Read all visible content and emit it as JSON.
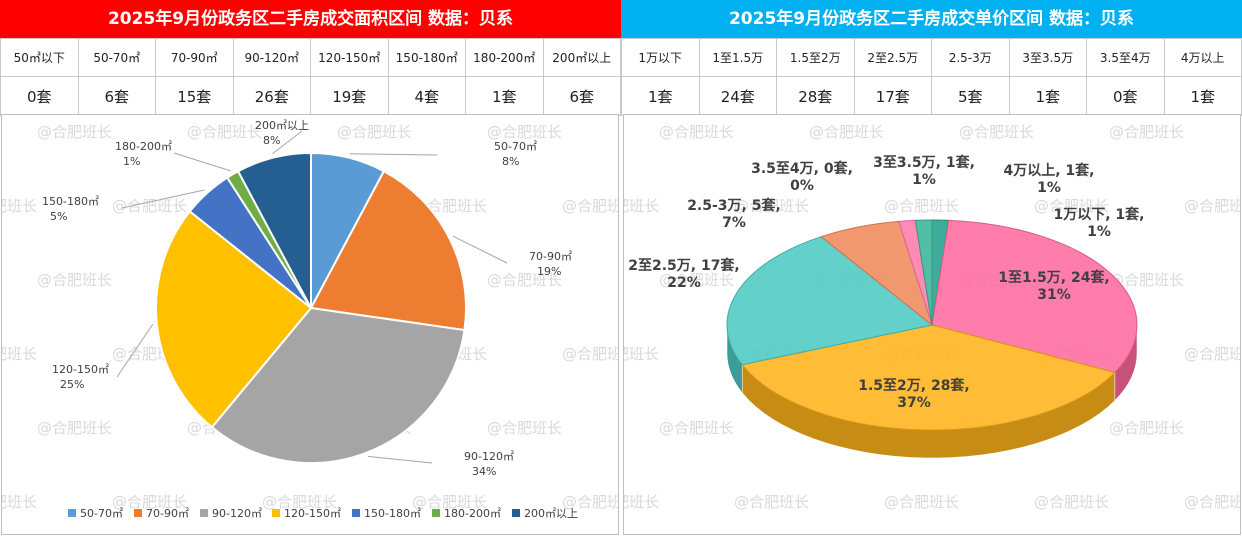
{
  "left": {
    "title": "2025年9月份政务区二手房成交面积区间 数据：贝系",
    "headers": [
      "50㎡以下",
      "50-70㎡",
      "70-90㎡",
      "90-120㎡",
      "120-150㎡",
      "150-180㎡",
      "180-200㎡",
      "200㎡以上"
    ],
    "values": [
      "0套",
      "6套",
      "15套",
      "26套",
      "19套",
      "4套",
      "1套",
      "6套"
    ]
  },
  "right": {
    "title": "2025年9月份政务区二手房成交单价区间 数据：贝系",
    "headers": [
      "1万以下",
      "1至1.5万",
      "1.5至2万",
      "2至2.5万",
      "2.5-3万",
      "3至3.5万",
      "3.5至4万",
      "4万以上"
    ],
    "values": [
      "1套",
      "24套",
      "28套",
      "17套",
      "5套",
      "1套",
      "0套",
      "1套"
    ]
  },
  "watermark": "@合肥班长",
  "chart_data": [
    {
      "type": "pie",
      "title": "",
      "slices": [
        {
          "label": "50-70㎡",
          "value": 6,
          "pct": "8%",
          "color": "#5b9bd5"
        },
        {
          "label": "70-90㎡",
          "value": 15,
          "pct": "19%",
          "color": "#ed7d31"
        },
        {
          "label": "90-120㎡",
          "value": 26,
          "pct": "34%",
          "color": "#a5a5a5"
        },
        {
          "label": "120-150㎡",
          "value": 19,
          "pct": "25%",
          "color": "#ffc000"
        },
        {
          "label": "150-180㎡",
          "value": 4,
          "pct": "5%",
          "color": "#4472c4"
        },
        {
          "label": "180-200㎡",
          "value": 1,
          "pct": "1%",
          "color": "#70ad47"
        },
        {
          "label": "200㎡以上",
          "value": 6,
          "pct": "8%",
          "color": "#255e91"
        }
      ],
      "legend": "bottom"
    },
    {
      "type": "pie",
      "title": "",
      "style": "3d",
      "slices": [
        {
          "label": "1万以下",
          "value": 1,
          "pct": "1%",
          "text": "1万以下, 1套,",
          "color": "#23a08c"
        },
        {
          "label": "1至1.5万",
          "value": 24,
          "pct": "31%",
          "text": "1至1.5万, 24套,",
          "color": "#ff6b9e"
        },
        {
          "label": "1.5至2万",
          "value": 28,
          "pct": "37%",
          "text": "1.5至2万, 28套,",
          "color": "#ffb31a"
        },
        {
          "label": "2至2.5万",
          "value": 17,
          "pct": "22%",
          "text": "2至2.5万, 17套,",
          "color": "#4dc9c3"
        },
        {
          "label": "2.5-3万",
          "value": 5,
          "pct": "7%",
          "text": "2.5-3万, 5套,",
          "color": "#f08a5d"
        },
        {
          "label": "3至3.5万",
          "value": 1,
          "pct": "1%",
          "text": "3至3.5万, 1套,",
          "color": "#ff7aa8"
        },
        {
          "label": "3.5至4万",
          "value": 0,
          "pct": "0%",
          "text": "3.5至4万, 0套,",
          "color": "#9c6ade"
        },
        {
          "label": "4万以上",
          "value": 1,
          "pct": "1%",
          "text": "4万以上, 1套,",
          "color": "#3ab59a"
        }
      ]
    }
  ]
}
